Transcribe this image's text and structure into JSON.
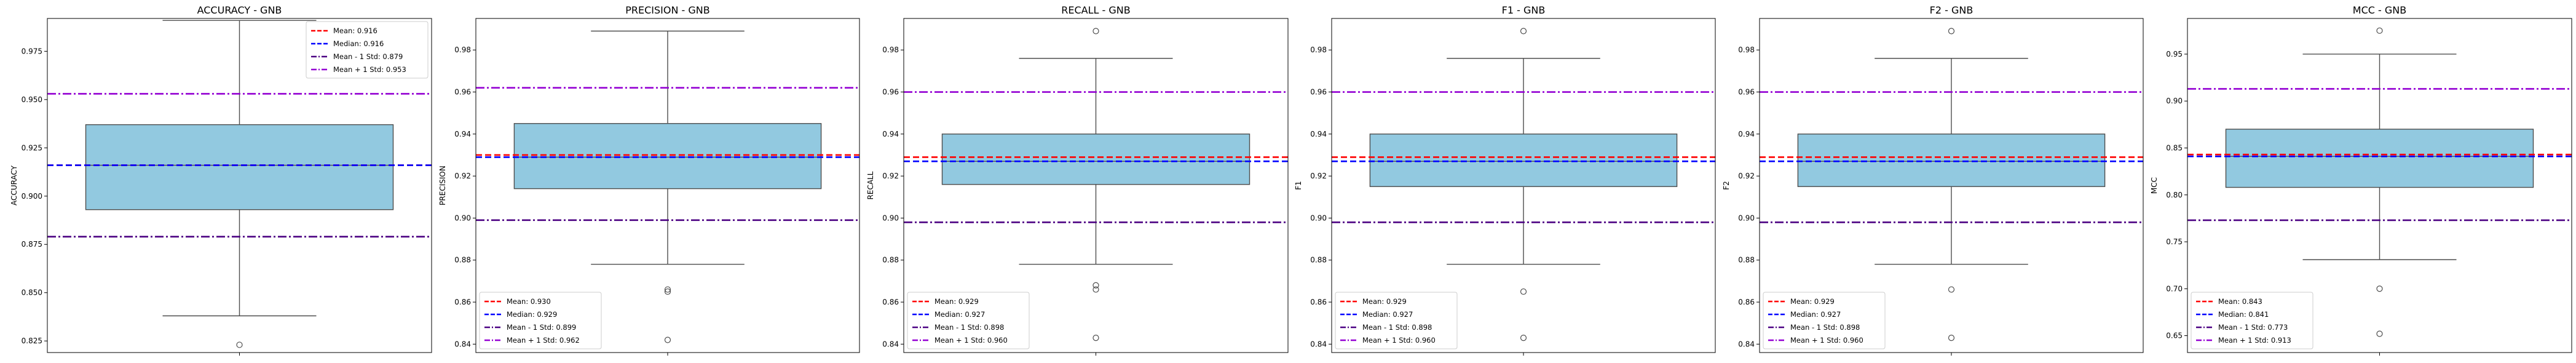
{
  "colors": {
    "box_fill": "#92C9E0",
    "box_edge": "#4d4d4d",
    "mean": "#ff0000",
    "median": "#0000ff",
    "std_minus": "#4b0082",
    "std_plus": "#9400d3",
    "axes": "#000000"
  },
  "chart_data": [
    {
      "type": "box",
      "title": "ACCURACY - GNB",
      "ylabel": "ACCURACY",
      "ylim": [
        0.819,
        0.992
      ],
      "yticks": [
        "0.825",
        "0.850",
        "0.875",
        "0.900",
        "0.925",
        "0.950",
        "0.975"
      ],
      "ytick_values": [
        0.825,
        0.85,
        0.875,
        0.9,
        0.925,
        0.95,
        0.975
      ],
      "box": {
        "whisker_low": 0.838,
        "q1": 0.893,
        "median": 0.916,
        "q3": 0.937,
        "whisker_high": 0.991,
        "outliers": [
          0.823
        ]
      },
      "mean": 0.916,
      "std_minus": 0.879,
      "std_plus": 0.953,
      "legend_position": "upper right",
      "legend": [
        "Mean: 0.916",
        "Median: 0.916",
        "Mean - 1 Std: 0.879",
        "Mean + 1 Std: 0.953"
      ]
    },
    {
      "type": "box",
      "title": "PRECISION - GNB",
      "ylabel": "PRECISION",
      "ylim": [
        0.836,
        0.995
      ],
      "yticks": [
        "0.84",
        "0.86",
        "0.88",
        "0.90",
        "0.92",
        "0.94",
        "0.96",
        "0.98"
      ],
      "ytick_values": [
        0.84,
        0.86,
        0.88,
        0.9,
        0.92,
        0.94,
        0.96,
        0.98
      ],
      "box": {
        "whisker_low": 0.878,
        "q1": 0.914,
        "median": 0.929,
        "q3": 0.945,
        "whisker_high": 0.989,
        "outliers": [
          0.865,
          0.866,
          0.842
        ]
      },
      "mean": 0.93,
      "std_minus": 0.899,
      "std_plus": 0.962,
      "legend_position": "lower left",
      "legend": [
        "Mean: 0.930",
        "Median: 0.929",
        "Mean - 1 Std: 0.899",
        "Mean + 1 Std: 0.962"
      ]
    },
    {
      "type": "box",
      "title": "RECALL - GNB",
      "ylabel": "RECALL",
      "ylim": [
        0.836,
        0.995
      ],
      "yticks": [
        "0.84",
        "0.86",
        "0.88",
        "0.90",
        "0.92",
        "0.94",
        "0.96",
        "0.98"
      ],
      "ytick_values": [
        0.84,
        0.86,
        0.88,
        0.9,
        0.92,
        0.94,
        0.96,
        0.98
      ],
      "box": {
        "whisker_low": 0.878,
        "q1": 0.916,
        "median": 0.927,
        "q3": 0.94,
        "whisker_high": 0.976,
        "outliers": [
          0.989,
          0.866,
          0.868,
          0.843
        ]
      },
      "mean": 0.929,
      "std_minus": 0.898,
      "std_plus": 0.96,
      "legend_position": "lower left",
      "legend": [
        "Mean: 0.929",
        "Median: 0.927",
        "Mean - 1 Std: 0.898",
        "Mean + 1 Std: 0.960"
      ]
    },
    {
      "type": "box",
      "title": "F1 - GNB",
      "ylabel": "F1",
      "ylim": [
        0.836,
        0.995
      ],
      "yticks": [
        "0.84",
        "0.86",
        "0.88",
        "0.90",
        "0.92",
        "0.94",
        "0.96",
        "0.98"
      ],
      "ytick_values": [
        0.84,
        0.86,
        0.88,
        0.9,
        0.92,
        0.94,
        0.96,
        0.98
      ],
      "box": {
        "whisker_low": 0.878,
        "q1": 0.915,
        "median": 0.927,
        "q3": 0.94,
        "whisker_high": 0.976,
        "outliers": [
          0.989,
          0.865,
          0.843
        ]
      },
      "mean": 0.929,
      "std_minus": 0.898,
      "std_plus": 0.96,
      "legend_position": "lower left",
      "legend": [
        "Mean: 0.929",
        "Median: 0.927",
        "Mean - 1 Std: 0.898",
        "Mean + 1 Std: 0.960"
      ]
    },
    {
      "type": "box",
      "title": "F2 - GNB",
      "ylabel": "F2",
      "ylim": [
        0.836,
        0.995
      ],
      "yticks": [
        "0.84",
        "0.86",
        "0.88",
        "0.90",
        "0.92",
        "0.94",
        "0.96",
        "0.98"
      ],
      "ytick_values": [
        0.84,
        0.86,
        0.88,
        0.9,
        0.92,
        0.94,
        0.96,
        0.98
      ],
      "box": {
        "whisker_low": 0.878,
        "q1": 0.915,
        "median": 0.927,
        "q3": 0.94,
        "whisker_high": 0.976,
        "outliers": [
          0.989,
          0.866,
          0.843
        ]
      },
      "mean": 0.929,
      "std_minus": 0.898,
      "std_plus": 0.96,
      "legend_position": "lower left",
      "legend": [
        "Mean: 0.929",
        "Median: 0.927",
        "Mean - 1 Std: 0.898",
        "Mean + 1 Std: 0.960"
      ]
    },
    {
      "type": "box",
      "title": "MCC - GNB",
      "ylabel": "MCC",
      "ylim": [
        0.632,
        0.988
      ],
      "yticks": [
        "0.65",
        "0.70",
        "0.75",
        "0.80",
        "0.85",
        "0.90",
        "0.95"
      ],
      "ytick_values": [
        0.65,
        0.7,
        0.75,
        0.8,
        0.85,
        0.9,
        0.95
      ],
      "box": {
        "whisker_low": 0.731,
        "q1": 0.808,
        "median": 0.841,
        "q3": 0.87,
        "whisker_high": 0.95,
        "outliers": [
          0.975,
          0.7,
          0.652
        ]
      },
      "mean": 0.843,
      "std_minus": 0.773,
      "std_plus": 0.913,
      "legend_position": "lower left",
      "legend": [
        "Mean: 0.843",
        "Median: 0.841",
        "Mean - 1 Std: 0.773",
        "Mean + 1 Std: 0.913"
      ]
    }
  ]
}
